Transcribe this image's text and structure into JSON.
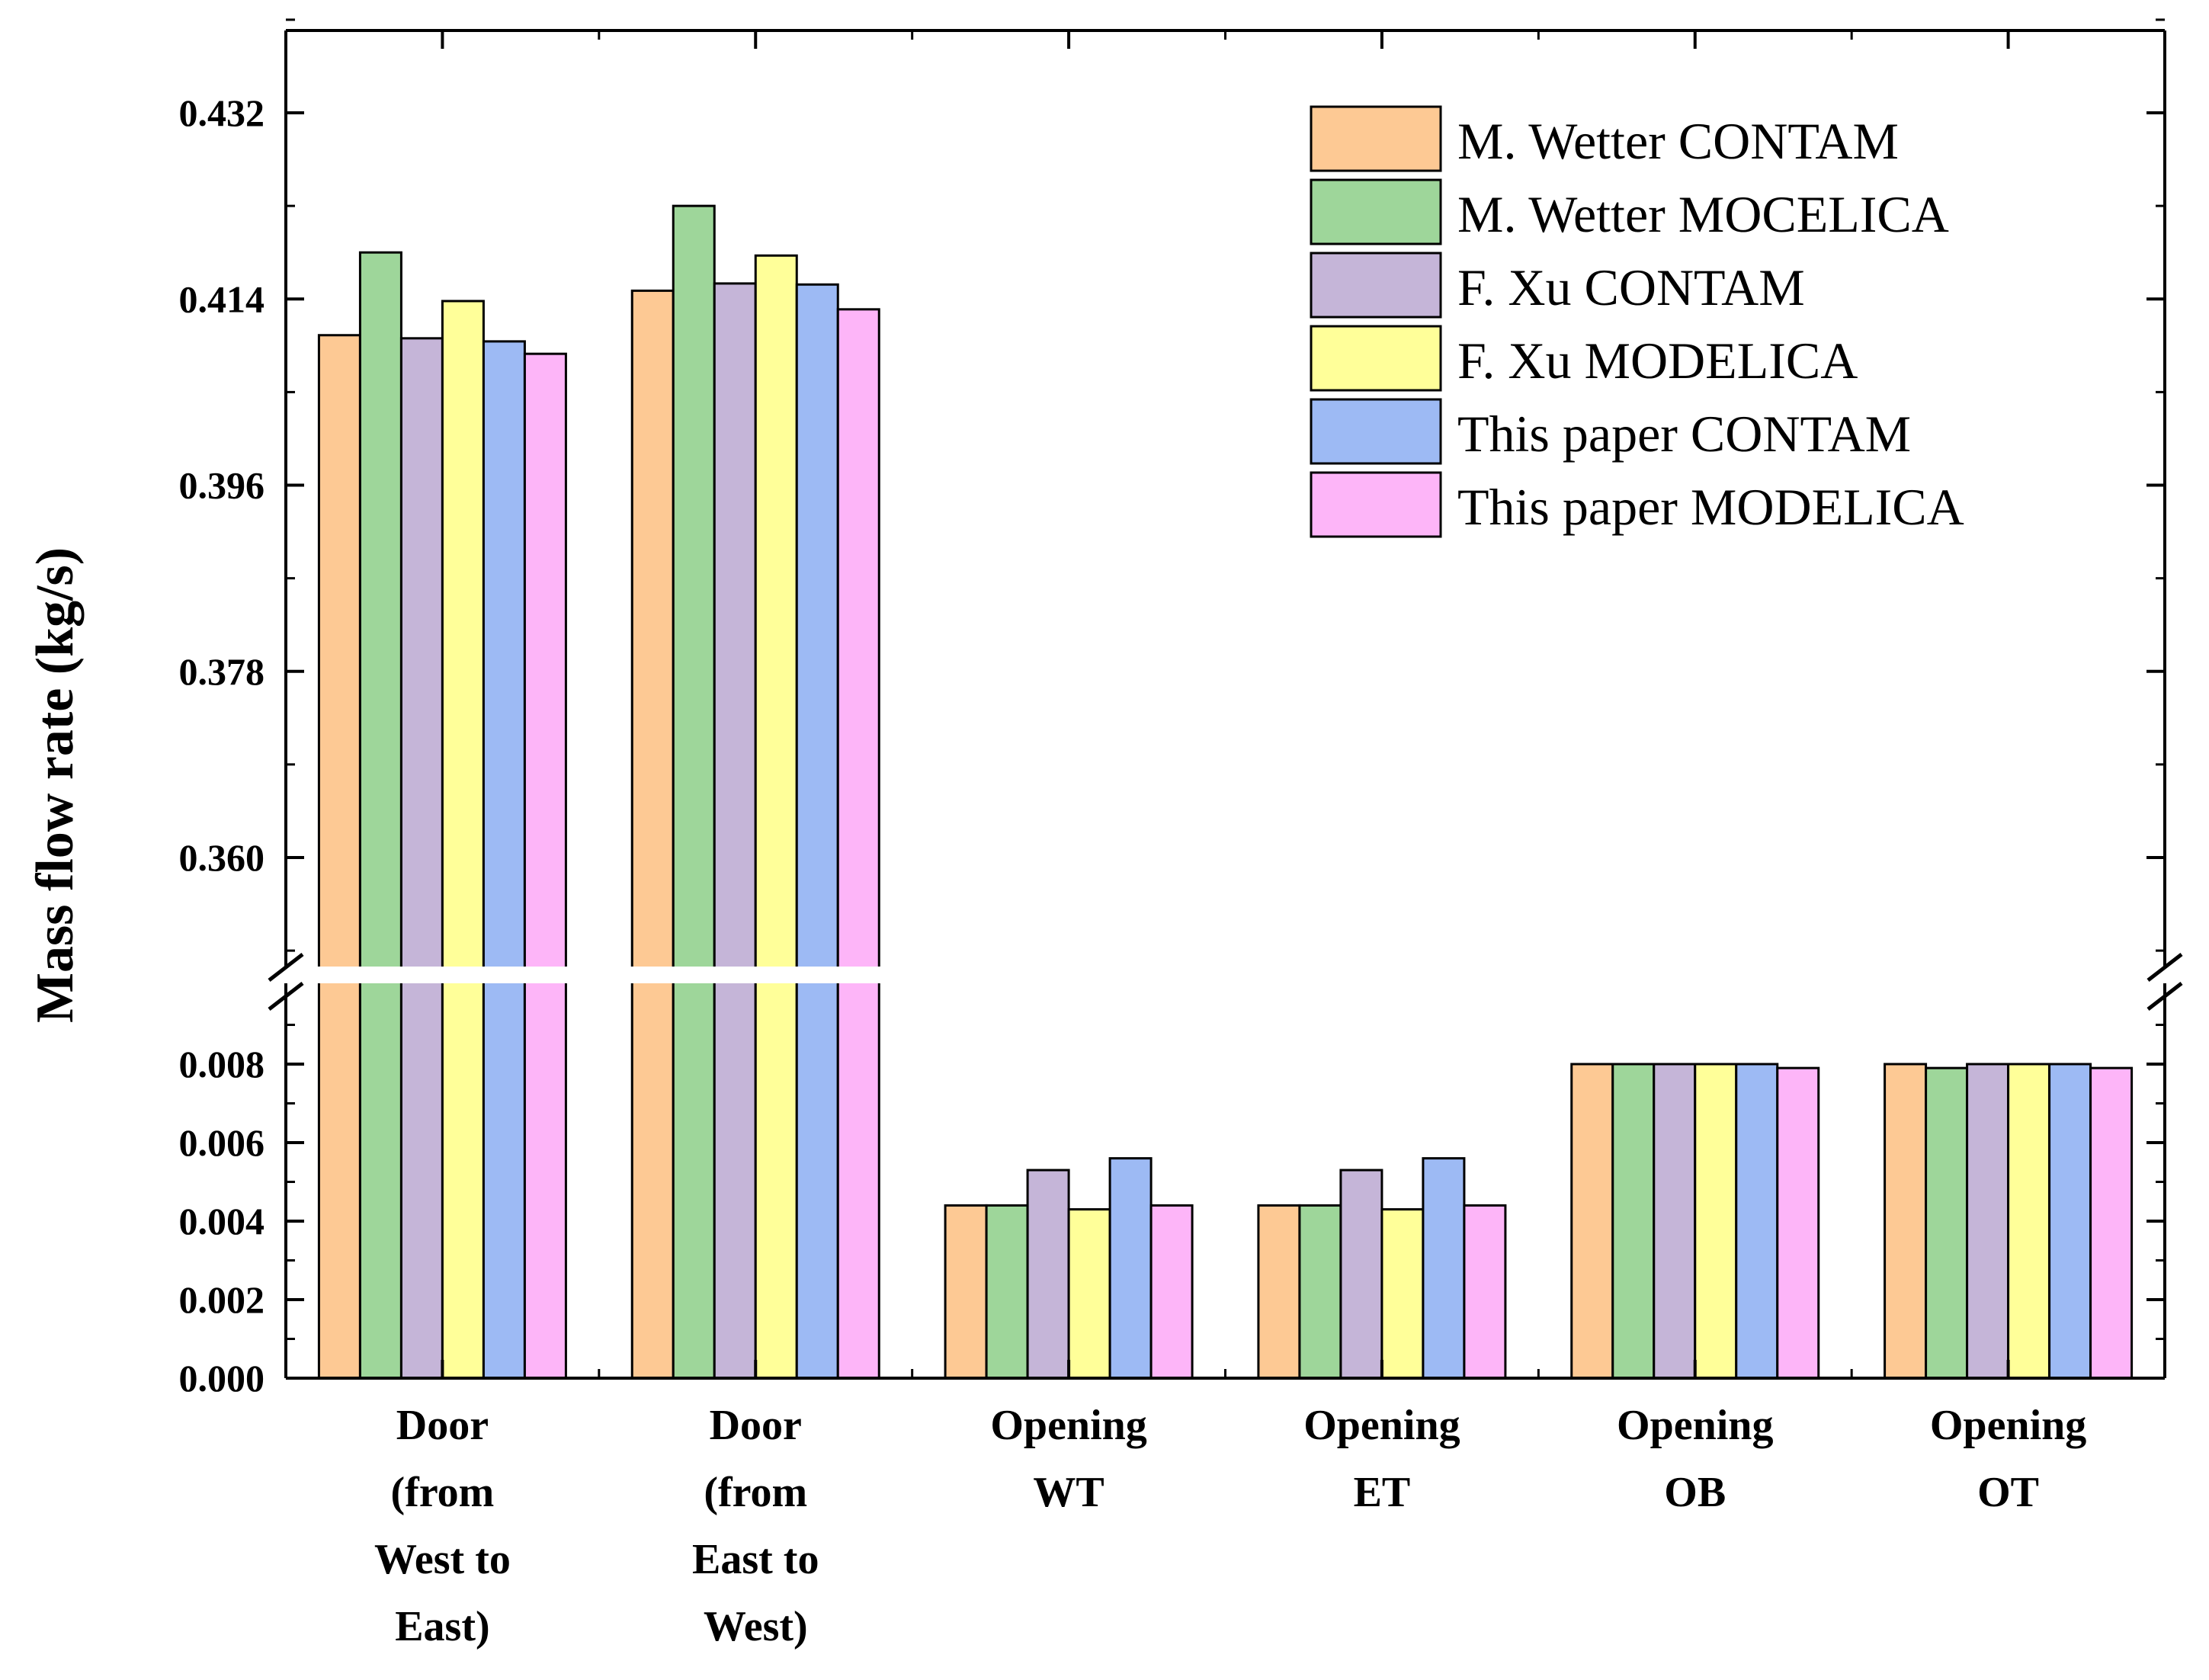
{
  "chart_data": {
    "type": "bar",
    "ylabel": "Mass flow rate (kg/s)",
    "broken_axis": true,
    "upper_ylim": [
      0.353,
      0.437
    ],
    "lower_ylim": [
      0.0,
      0.0095
    ],
    "upper_ticks": [
      "0.360",
      "0.378",
      "0.396",
      "0.414",
      "0.432"
    ],
    "lower_ticks": [
      "0.000",
      "0.002",
      "0.004",
      "0.006",
      "0.008"
    ],
    "legend_position": "top-right",
    "categories": [
      [
        "Door",
        "(from",
        "West to",
        "East)"
      ],
      [
        "Door",
        "(from",
        "East to",
        "West)"
      ],
      [
        "Opening",
        "WT"
      ],
      [
        "Opening",
        "ET"
      ],
      [
        "Opening",
        "OB"
      ],
      [
        "Opening",
        "OT"
      ]
    ],
    "series": [
      {
        "name": "M. Wetter CONTAM",
        "color": "#FDC994",
        "values": [
          0.4105,
          0.4148,
          0.0044,
          0.0044,
          0.008,
          0.008
        ]
      },
      {
        "name": "M. Wetter MOCELICA",
        "color": "#9ED69A",
        "values": [
          0.4185,
          0.423,
          0.0044,
          0.0044,
          0.008,
          0.0079
        ]
      },
      {
        "name": "F. Xu CONTAM",
        "color": "#C5B5D8",
        "values": [
          0.4102,
          0.4155,
          0.0053,
          0.0053,
          0.008,
          0.008
        ]
      },
      {
        "name": "F. Xu MODELICA",
        "color": "#FFFF99",
        "values": [
          0.4138,
          0.4182,
          0.0043,
          0.0043,
          0.008,
          0.008
        ]
      },
      {
        "name": "This paper CONTAM",
        "color": "#9DBAF4",
        "values": [
          0.4099,
          0.4154,
          0.0056,
          0.0056,
          0.008,
          0.008
        ]
      },
      {
        "name": "This paper MODELICA",
        "color": "#FDB5F8",
        "values": [
          0.4087,
          0.413,
          0.0044,
          0.0044,
          0.0079,
          0.0079
        ]
      }
    ]
  }
}
